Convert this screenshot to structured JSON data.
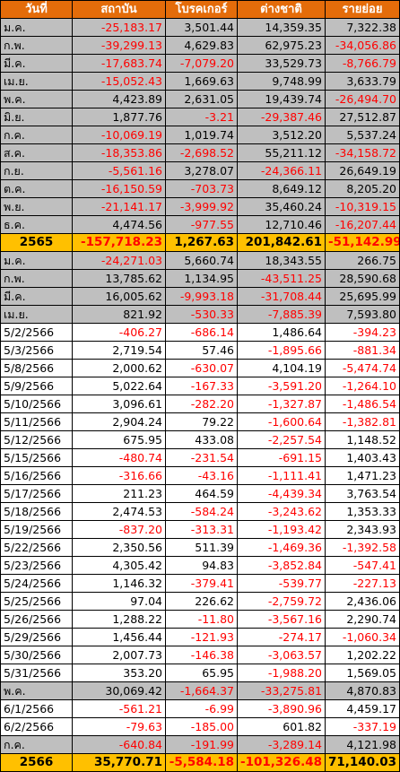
{
  "table": {
    "header": [
      "วันที่",
      "สถาบัน",
      "โบรคเกอร์",
      "ต่างชาติ",
      "รายย่อย"
    ],
    "rows": [
      [
        "ม.ค.",
        "-25,183.17",
        "3,501.44",
        "14,359.35",
        "7,322.38"
      ],
      [
        "ก.พ.",
        "-39,299.13",
        "4,629.83",
        "62,975.23",
        "-34,056.86"
      ],
      [
        "มี.ค.",
        "-17,683.74",
        "-7,079.20",
        "33,529.73",
        "-8,766.79"
      ],
      [
        "เม.ย.",
        "-15,052.43",
        "1,669.63",
        "9,748.99",
        "3,633.79"
      ],
      [
        "พ.ค.",
        "4,423.89",
        "2,631.05",
        "19,439.74",
        "-26,494.70"
      ],
      [
        "มิ.ย.",
        "1,877.76",
        "-3.21",
        "-29,387.46",
        "27,512.87"
      ],
      [
        "ก.ค.",
        "-10,069.19",
        "1,019.74",
        "3,512.20",
        "5,537.24"
      ],
      [
        "ส.ค.",
        "-18,353.86",
        "-2,698.52",
        "55,211.12",
        "-34,158.72"
      ],
      [
        "ก.ย.",
        "-5,561.16",
        "3,278.07",
        "-24,366.11",
        "26,649.19"
      ],
      [
        "ต.ค.",
        "-16,150.59",
        "-703.73",
        "8,649.12",
        "8,205.20"
      ],
      [
        "พ.ย.",
        "-21,141.17",
        "-3,999.92",
        "35,460.24",
        "-10,319.15"
      ],
      [
        "ธ.ค.",
        "4,474.56",
        "-977.55",
        "12,710.46",
        "-16,207.44"
      ],
      [
        "2565",
        "-157,718.23",
        "1,267.63",
        "201,842.61",
        "-51,142.99"
      ],
      [
        "ม.ค.",
        "-24,271.03",
        "5,660.74",
        "18,343.55",
        "266.75"
      ],
      [
        "ก.พ.",
        "13,785.62",
        "1,134.95",
        "-43,511.25",
        "28,590.68"
      ],
      [
        "มี.ค.",
        "16,005.62",
        "-9,993.18",
        "-31,708.44",
        "25,695.99"
      ],
      [
        "เม.ย.",
        "821.92",
        "-530.33",
        "-7,885.39",
        "7,593.80"
      ],
      [
        "5/2/2566",
        "-406.27",
        "-686.14",
        "1,486.64",
        "-394.23"
      ],
      [
        "5/3/2566",
        "2,719.54",
        "57.46",
        "-1,895.66",
        "-881.34"
      ],
      [
        "5/8/2566",
        "2,000.62",
        "-630.07",
        "4,104.19",
        "-5,474.74"
      ],
      [
        "5/9/2566",
        "5,022.64",
        "-167.33",
        "-3,591.20",
        "-1,264.10"
      ],
      [
        "5/10/2566",
        "3,096.61",
        "-282.20",
        "-1,327.87",
        "-1,486.54"
      ],
      [
        "5/11/2566",
        "2,904.24",
        "79.22",
        "-1,600.64",
        "-1,382.81"
      ],
      [
        "5/12/2566",
        "675.95",
        "433.08",
        "-2,257.54",
        "1,148.52"
      ],
      [
        "5/15/2566",
        "-480.74",
        "-231.54",
        "-691.15",
        "1,403.43"
      ],
      [
        "5/16/2566",
        "-316.66",
        "-43.16",
        "-1,111.41",
        "1,471.23"
      ],
      [
        "5/17/2566",
        "211.23",
        "464.59",
        "-4,439.34",
        "3,763.54"
      ],
      [
        "5/18/2566",
        "2,474.53",
        "-584.24",
        "-3,243.62",
        "1,353.33"
      ],
      [
        "5/19/2566",
        "-837.20",
        "-313.31",
        "-1,193.42",
        "2,343.93"
      ],
      [
        "5/22/2566",
        "2,350.56",
        "511.39",
        "-1,469.36",
        "-1,392.58"
      ],
      [
        "5/23/2566",
        "4,305.42",
        "94.83",
        "-3,852.84",
        "-547.41"
      ],
      [
        "5/24/2566",
        "1,146.32",
        "-379.41",
        "-539.77",
        "-227.13"
      ],
      [
        "5/25/2566",
        "97.04",
        "226.62",
        "-2,759.72",
        "2,436.06"
      ],
      [
        "5/26/2566",
        "1,288.22",
        "-11.80",
        "-3,567.16",
        "2,290.74"
      ],
      [
        "5/29/2566",
        "1,456.44",
        "-121.93",
        "-274.17",
        "-1,060.34"
      ],
      [
        "5/30/2566",
        "2,007.73",
        "-146.38",
        "-3,063.57",
        "1,202.22"
      ],
      [
        "5/31/2566",
        "353.20",
        "65.95",
        "-1,988.20",
        "1,569.05"
      ],
      [
        "พ.ค.",
        "30,069.42",
        "-1,664.37",
        "-33,275.81",
        "4,870.83"
      ],
      [
        "6/1/2566",
        "-561.21",
        "-6.99",
        "-3,890.96",
        "4,459.17"
      ],
      [
        "6/2/2566",
        "-79.63",
        "-185.00",
        "601.82",
        "-337.19"
      ],
      [
        "ก.ค.",
        "-640.84",
        "-191.99",
        "-3,289.14",
        "4,121.98"
      ],
      [
        "2566",
        "35,770.71",
        "-5,584.18",
        "-101,326.48",
        "71,140.03"
      ]
    ]
  }
}
